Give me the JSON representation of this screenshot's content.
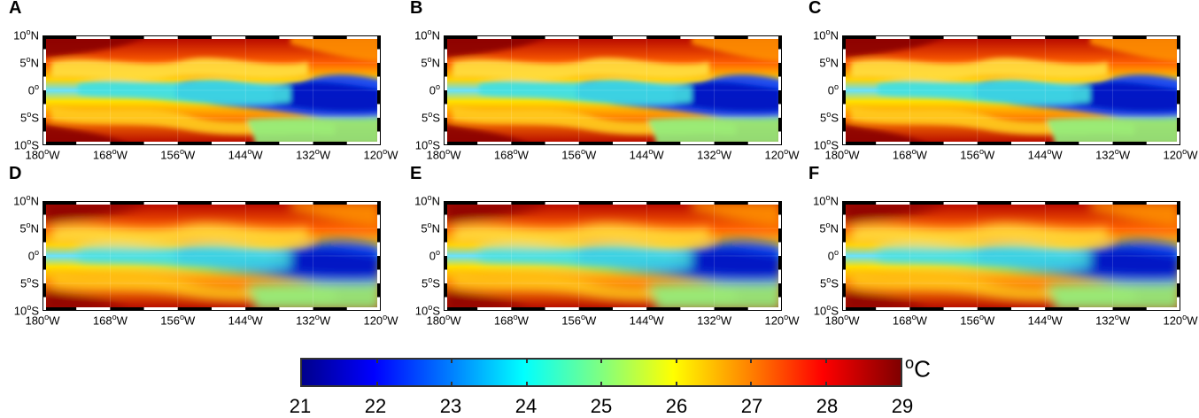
{
  "panels": [
    {
      "id": "A"
    },
    {
      "id": "B"
    },
    {
      "id": "C"
    },
    {
      "id": "D"
    },
    {
      "id": "E"
    },
    {
      "id": "F"
    }
  ],
  "lat_labels": [
    {
      "deg": "10",
      "hem": "N"
    },
    {
      "deg": "5",
      "hem": "N"
    },
    {
      "deg": "0",
      "hem": ""
    },
    {
      "deg": "5",
      "hem": "S"
    },
    {
      "deg": "10",
      "hem": "S"
    }
  ],
  "lon_labels": [
    {
      "deg": "180",
      "hem": "W"
    },
    {
      "deg": "168",
      "hem": "W"
    },
    {
      "deg": "156",
      "hem": "W"
    },
    {
      "deg": "144",
      "hem": "W"
    },
    {
      "deg": "132",
      "hem": "W"
    },
    {
      "deg": "120",
      "hem": "W"
    }
  ],
  "colorbar": {
    "unit_sup": "o",
    "unit": "C",
    "ticks": [
      "21",
      "22",
      "23",
      "24",
      "25",
      "26",
      "27",
      "28",
      "29"
    ],
    "colors": [
      "#00008c",
      "#0000ff",
      "#0080ff",
      "#00ffff",
      "#80ff80",
      "#ffff00",
      "#ff8000",
      "#ff0000",
      "#800000"
    ]
  }
}
